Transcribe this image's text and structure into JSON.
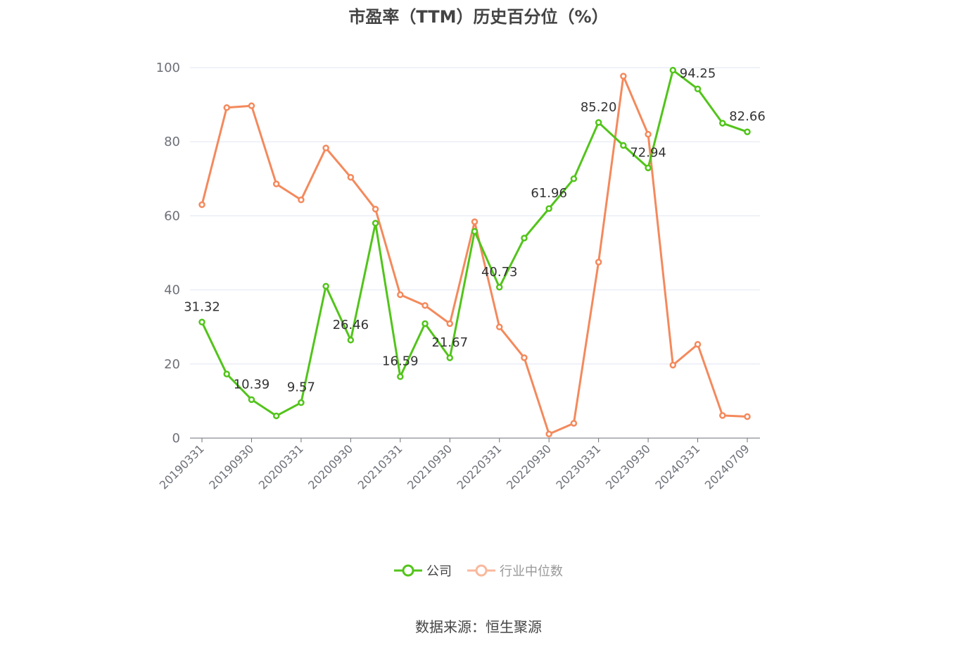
{
  "title": "市盈率（TTM）历史百分位（%）",
  "source": "数据来源：恒生聚源",
  "legend": [
    {
      "label": "公司",
      "color": "#52c41a"
    },
    {
      "label": "行业中位数",
      "color": "#f4895c"
    }
  ],
  "chart_data": {
    "type": "line",
    "title": "市盈率（TTM）历史百分位（%）",
    "xlabel": "",
    "ylabel": "",
    "ylim": [
      0,
      100
    ],
    "yticks": [
      0,
      20,
      40,
      60,
      80,
      100
    ],
    "grid": true,
    "legend_position": "bottom",
    "x": [
      "20190331",
      "20190630",
      "20190930",
      "20191231",
      "20200331",
      "20200630",
      "20200930",
      "20201231",
      "20210331",
      "20210630",
      "20210930",
      "20211231",
      "20220331",
      "20220630",
      "20220930",
      "20221231",
      "20230331",
      "20230630",
      "20230930",
      "20231231",
      "20240331",
      "20240630",
      "20240709"
    ],
    "x_tick_labels": [
      "20190331",
      "20190930",
      "20200331",
      "20200930",
      "20210331",
      "20210930",
      "20220331",
      "20220930",
      "20230331",
      "20230930",
      "20240331",
      "20240709"
    ],
    "series": [
      {
        "name": "公司",
        "color": "#52c41a",
        "values": [
          31.32,
          17.3,
          10.39,
          6.0,
          9.57,
          41.0,
          26.46,
          58.0,
          16.59,
          30.9,
          21.67,
          55.8,
          40.73,
          54.0,
          61.96,
          70.0,
          85.2,
          79.0,
          72.94,
          99.3,
          94.25,
          85.0,
          82.66
        ],
        "labels": [
          "31.32",
          "",
          "10.39",
          "",
          "9.57",
          "",
          "26.46",
          "",
          "16.59",
          "",
          "21.67",
          "",
          "40.73",
          "",
          "61.96",
          "",
          "85.20",
          "",
          "72.94",
          "",
          "94.25",
          "",
          "82.66"
        ]
      },
      {
        "name": "行业中位数",
        "color": "#f4895c",
        "values": [
          63.0,
          89.2,
          89.7,
          68.6,
          64.3,
          78.3,
          70.4,
          61.8,
          38.7,
          35.8,
          30.9,
          58.4,
          30.0,
          21.7,
          1.1,
          4.0,
          47.5,
          97.7,
          82.0,
          19.7,
          25.3,
          6.1,
          5.8
        ]
      }
    ]
  }
}
